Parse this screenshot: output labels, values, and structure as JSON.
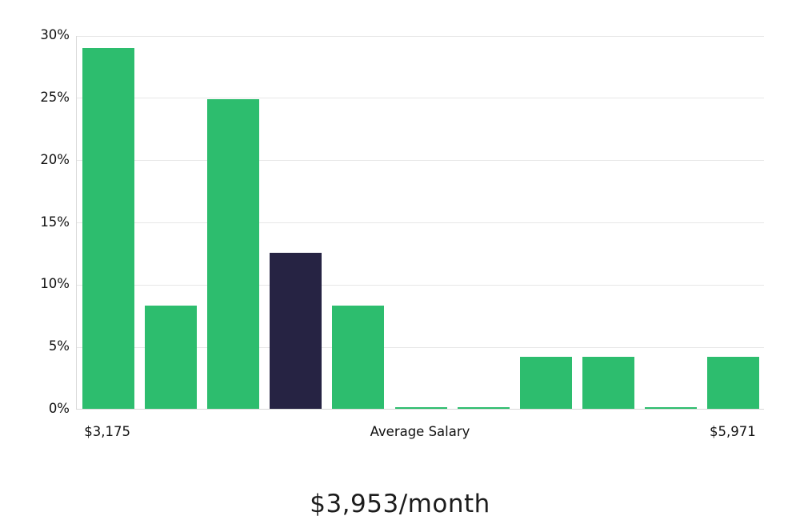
{
  "chart_data": {
    "type": "bar",
    "title": "",
    "xlabel": "",
    "ylabel": "",
    "ylim": [
      0,
      30
    ],
    "grid": true,
    "legend": "none",
    "values": [
      29.0,
      8.3,
      24.85,
      12.5,
      8.3,
      0.15,
      0.15,
      4.15,
      4.15,
      0.15,
      4.15
    ],
    "highlight_bar_index": 3,
    "y_ticks": [
      {
        "value": 0,
        "label": "0%"
      },
      {
        "value": 5,
        "label": "5%"
      },
      {
        "value": 10,
        "label": "10%"
      },
      {
        "value": 15,
        "label": "15%"
      },
      {
        "value": 20,
        "label": "20%"
      },
      {
        "value": 25,
        "label": "25%"
      },
      {
        "value": 30,
        "label": "30%"
      }
    ],
    "x_axis_labels": {
      "left": "$3,175",
      "center": "Average Salary",
      "right": "$5,971"
    },
    "caption": "$3,953/month",
    "colors": {
      "bar": "#2dbd6e",
      "highlight_bar": "#262343",
      "gridline": "#e7e7e7",
      "axis": "#d9d9d9",
      "text": "#111111"
    }
  }
}
